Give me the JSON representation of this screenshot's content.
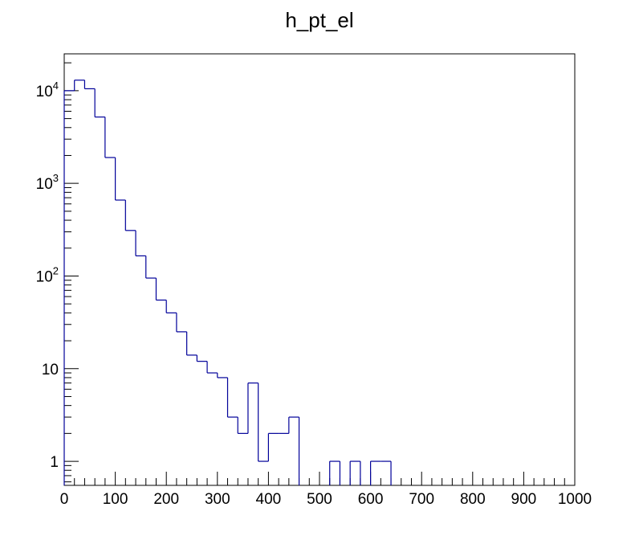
{
  "chart_data": {
    "type": "histogram",
    "title": "h_pt_el",
    "xlabel": "",
    "ylabel": "",
    "xlim": [
      0,
      1000
    ],
    "ylim": [
      0.55,
      25000
    ],
    "yscale": "log",
    "grid": false,
    "legend": "none",
    "line_color": "#000099",
    "bin_width": 20,
    "bins": [
      {
        "x0": 0,
        "x1": 20,
        "y": 10000
      },
      {
        "x0": 20,
        "x1": 40,
        "y": 13000
      },
      {
        "x0": 40,
        "x1": 60,
        "y": 10500
      },
      {
        "x0": 60,
        "x1": 80,
        "y": 5200
      },
      {
        "x0": 80,
        "x1": 100,
        "y": 1900
      },
      {
        "x0": 100,
        "x1": 120,
        "y": 660
      },
      {
        "x0": 120,
        "x1": 140,
        "y": 310
      },
      {
        "x0": 140,
        "x1": 160,
        "y": 165
      },
      {
        "x0": 160,
        "x1": 180,
        "y": 95
      },
      {
        "x0": 180,
        "x1": 200,
        "y": 55
      },
      {
        "x0": 200,
        "x1": 220,
        "y": 40
      },
      {
        "x0": 220,
        "x1": 240,
        "y": 25
      },
      {
        "x0": 240,
        "x1": 260,
        "y": 14
      },
      {
        "x0": 260,
        "x1": 280,
        "y": 12
      },
      {
        "x0": 280,
        "x1": 300,
        "y": 9
      },
      {
        "x0": 300,
        "x1": 320,
        "y": 8
      },
      {
        "x0": 320,
        "x1": 340,
        "y": 3
      },
      {
        "x0": 340,
        "x1": 360,
        "y": 2
      },
      {
        "x0": 360,
        "x1": 380,
        "y": 7
      },
      {
        "x0": 380,
        "x1": 400,
        "y": 1
      },
      {
        "x0": 400,
        "x1": 420,
        "y": 2
      },
      {
        "x0": 420,
        "x1": 440,
        "y": 2
      },
      {
        "x0": 440,
        "x1": 460,
        "y": 3
      },
      {
        "x0": 460,
        "x1": 480,
        "y": 0
      },
      {
        "x0": 480,
        "x1": 500,
        "y": 0
      },
      {
        "x0": 500,
        "x1": 520,
        "y": 0
      },
      {
        "x0": 520,
        "x1": 540,
        "y": 1
      },
      {
        "x0": 540,
        "x1": 560,
        "y": 0
      },
      {
        "x0": 560,
        "x1": 580,
        "y": 1
      },
      {
        "x0": 580,
        "x1": 600,
        "y": 0
      },
      {
        "x0": 600,
        "x1": 620,
        "y": 1
      },
      {
        "x0": 620,
        "x1": 640,
        "y": 1
      }
    ],
    "x_ticks": [
      "0",
      "100",
      "200",
      "300",
      "400",
      "500",
      "600",
      "700",
      "800",
      "900",
      "1000"
    ],
    "y_ticks": [
      {
        "value": 1,
        "base": "1",
        "exp": ""
      },
      {
        "value": 10,
        "base": "10",
        "exp": ""
      },
      {
        "value": 100,
        "base": "10",
        "exp": "2"
      },
      {
        "value": 1000,
        "base": "10",
        "exp": "3"
      },
      {
        "value": 10000,
        "base": "10",
        "exp": "4"
      }
    ]
  }
}
